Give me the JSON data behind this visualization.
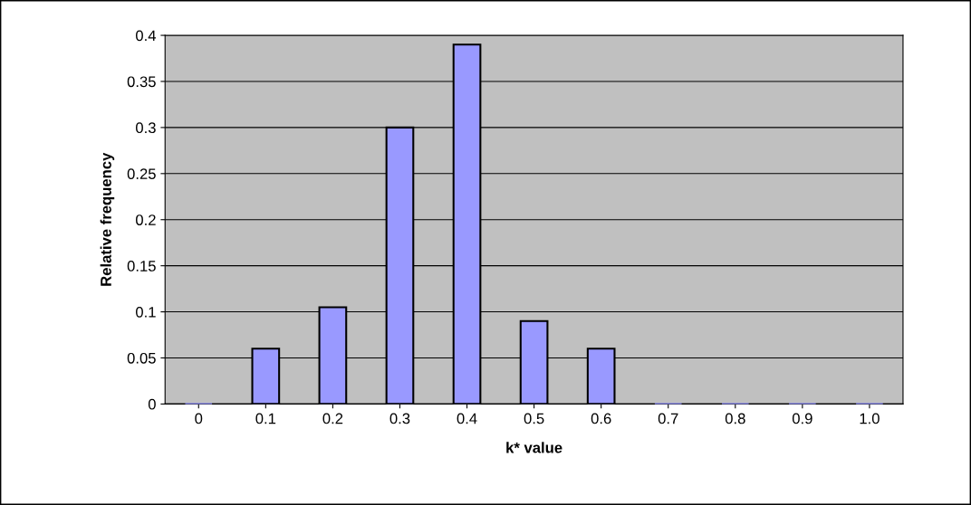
{
  "chart_data": {
    "type": "bar",
    "xlabel": "k* value",
    "ylabel": "Relative frequency",
    "categories": [
      "0",
      "0.1",
      "0.2",
      "0.3",
      "0.4",
      "0.5",
      "0.6",
      "0.7",
      "0.8",
      "0.9",
      "1.0"
    ],
    "values": [
      0,
      0.06,
      0.105,
      0.3,
      0.39,
      0.09,
      0.06,
      0,
      0,
      0,
      0
    ],
    "color": "#9999ff",
    "ylim": [
      0,
      0.4
    ],
    "yticks": [
      0,
      0.05,
      0.1,
      0.15,
      0.2,
      0.25,
      0.3,
      0.35,
      0.4
    ],
    "grid": "y",
    "legend": false
  }
}
